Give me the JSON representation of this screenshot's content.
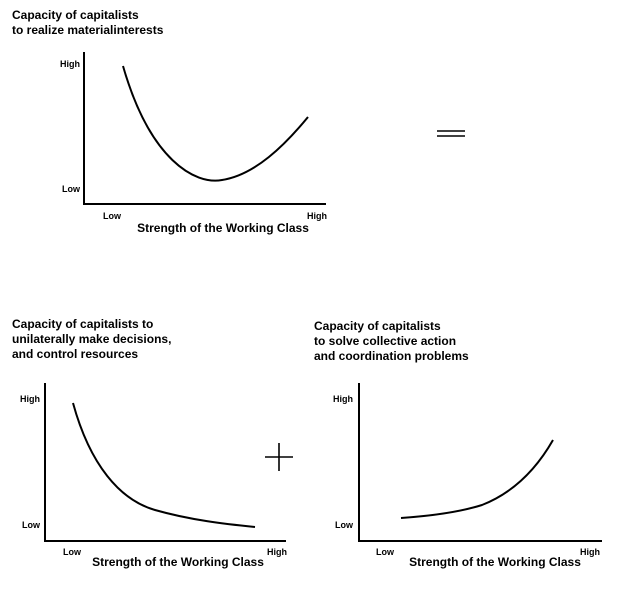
{
  "charts": {
    "top": {
      "title_lines": [
        "Capacity of capitalists",
        "to realize materialinterests"
      ],
      "y_high": "High",
      "y_low": "Low",
      "x_low": "Low",
      "x_high": "High",
      "xlabel": "Strength of the Working Class",
      "curve": "u-shaped"
    },
    "bottom_left": {
      "title_lines": [
        "Capacity of capitalists to",
        "unilaterally make decisions,",
        "and control resources"
      ],
      "y_high": "High",
      "y_low": "Low",
      "x_low": "Low",
      "x_high": "High",
      "xlabel": "Strength of the Working Class",
      "curve": "decreasing"
    },
    "bottom_right": {
      "title_lines": [
        "Capacity of capitalists",
        "to solve collective action",
        "and coordination problems"
      ],
      "y_high": "High",
      "y_low": "Low",
      "x_low": "Low",
      "x_high": "High",
      "xlabel": "Strength of the Working Class",
      "curve": "increasing"
    }
  },
  "operators": {
    "equals": "equals-sign",
    "plus": "plus-sign"
  }
}
